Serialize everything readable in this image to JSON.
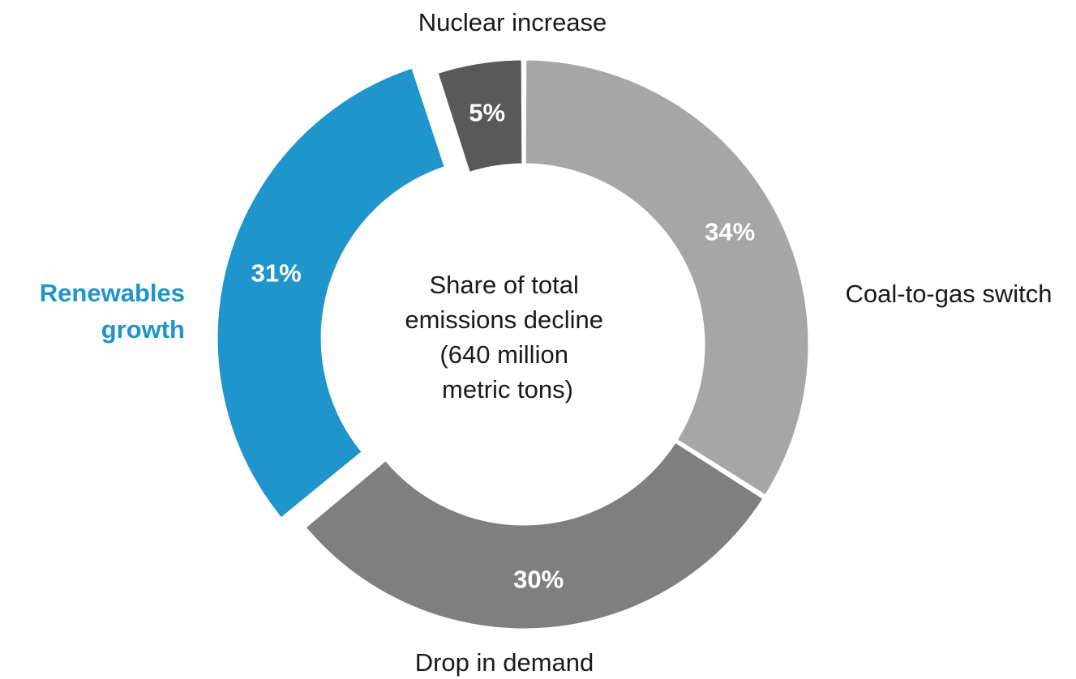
{
  "chart_data": {
    "type": "pie",
    "center_label": {
      "lines": [
        "Share of total",
        "emissions decline",
        "(640 million",
        "metric tons)"
      ]
    },
    "slices": [
      {
        "label": "Coal-to-gas switch",
        "value": 34,
        "value_label": "34%",
        "color": "#a6a6a6",
        "label_color": "#1a1a1a",
        "exploded": false
      },
      {
        "label": "Drop in demand",
        "value": 30,
        "value_label": "30%",
        "color": "#7f7f7f",
        "label_color": "#1a1a1a",
        "exploded": false
      },
      {
        "label": "Renewables growth",
        "label_lines": [
          "Renewables",
          "growth"
        ],
        "value": 31,
        "value_label": "31%",
        "color": "#1f95cc",
        "label_color": "#1f95cc",
        "exploded": true
      },
      {
        "label": "Nuclear increase",
        "value": 5,
        "value_label": "5%",
        "color": "#595959",
        "label_color": "#1a1a1a",
        "exploded": false
      }
    ],
    "start_angle_deg": 0,
    "direction": "clockwise"
  }
}
